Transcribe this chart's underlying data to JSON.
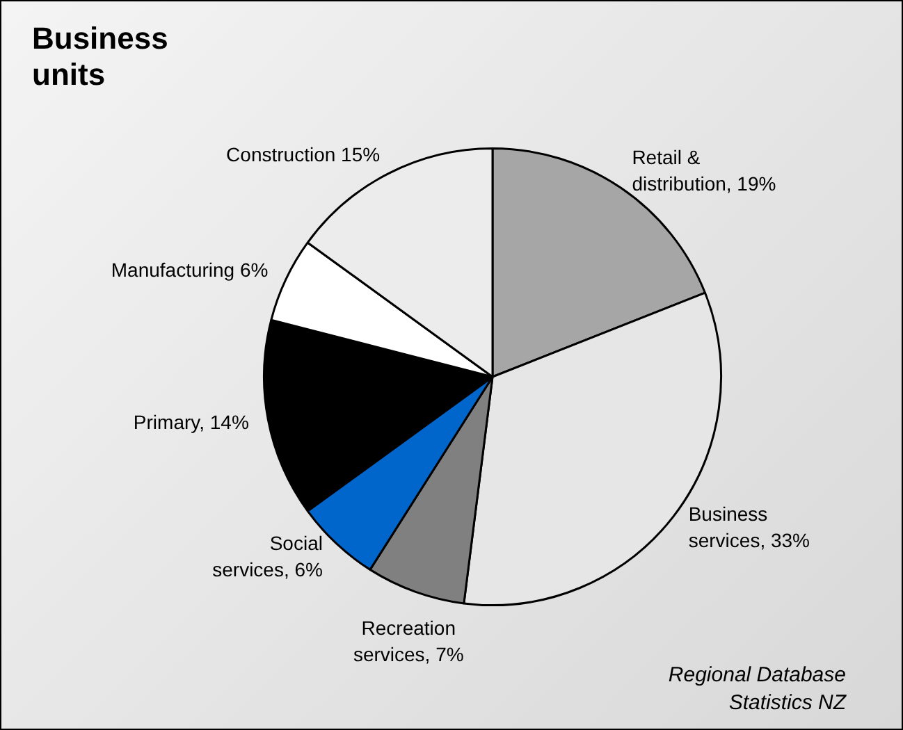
{
  "chart_data": {
    "type": "pie",
    "title": "Business units",
    "categories": [
      "Retail & distribution",
      "Business services",
      "Recreation services",
      "Social services",
      "Primary",
      "Manufacturing",
      "Construction"
    ],
    "values": [
      19,
      33,
      7,
      6,
      14,
      6,
      15
    ],
    "value_labels": [
      "19%",
      "33%",
      "7%",
      "6%",
      "14%",
      "6%",
      "15%"
    ],
    "colors": [
      "#a6a6a6",
      "#e6e6e6",
      "#808080",
      "#0066cc",
      "#000000",
      "#ffffff",
      "#ececec"
    ],
    "legend": false,
    "annotations": [
      "Regional Database",
      "Statistics NZ"
    ]
  }
}
